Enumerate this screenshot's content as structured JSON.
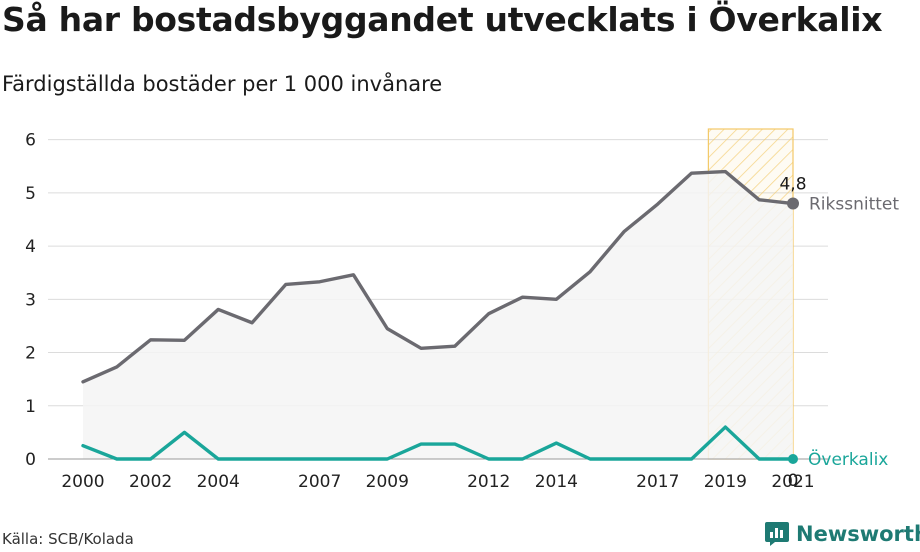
{
  "title": "Så har bostadsbyggandet utvecklats i Överkalix",
  "subtitle": "Färdigställda bostäder per 1 000 invånare",
  "source": "Källa: SCB/Kolada",
  "brand": "Newsworthy",
  "colors": {
    "riket": "#6b6a70",
    "kommun": "#1aa69a",
    "highlight": "#f3c968",
    "grid": "#dcdcdc",
    "area": "#f4f4f5",
    "brand": "#1e7a73"
  },
  "chart_data": {
    "type": "line",
    "x": [
      2000,
      2001,
      2002,
      2003,
      2004,
      2005,
      2006,
      2007,
      2008,
      2009,
      2010,
      2011,
      2012,
      2013,
      2014,
      2015,
      2016,
      2017,
      2018,
      2019,
      2020,
      2021
    ],
    "series": [
      {
        "name": "Rikssnittet",
        "values": [
          1.45,
          1.73,
          2.24,
          2.23,
          2.81,
          2.56,
          3.28,
          3.33,
          3.46,
          2.45,
          2.08,
          2.12,
          2.73,
          3.04,
          3.0,
          3.52,
          4.27,
          4.79,
          5.37,
          5.4,
          4.87,
          4.8
        ],
        "end_label": "4,8"
      },
      {
        "name": "Överkalix",
        "values": [
          0.25,
          0.0,
          0.0,
          0.5,
          0.0,
          0.0,
          0.0,
          0.0,
          0.0,
          0.0,
          0.28,
          0.28,
          0.0,
          0.0,
          0.3,
          0.0,
          0.0,
          0.0,
          0.0,
          0.6,
          0.0,
          0.0
        ],
        "end_label": "0"
      }
    ],
    "x_ticks": [
      "2000",
      "2002",
      "2004",
      "2007",
      "2009",
      "2012",
      "2014",
      "2017",
      "2019",
      "2021"
    ],
    "y_ticks": [
      "0",
      "1",
      "2",
      "3",
      "4",
      "5",
      "6"
    ],
    "ylim": [
      0,
      6.2
    ],
    "xlim": [
      2000,
      2021
    ],
    "highlight_range": [
      2019,
      2021
    ],
    "grid": true,
    "legend": "direct labels at line ends"
  }
}
